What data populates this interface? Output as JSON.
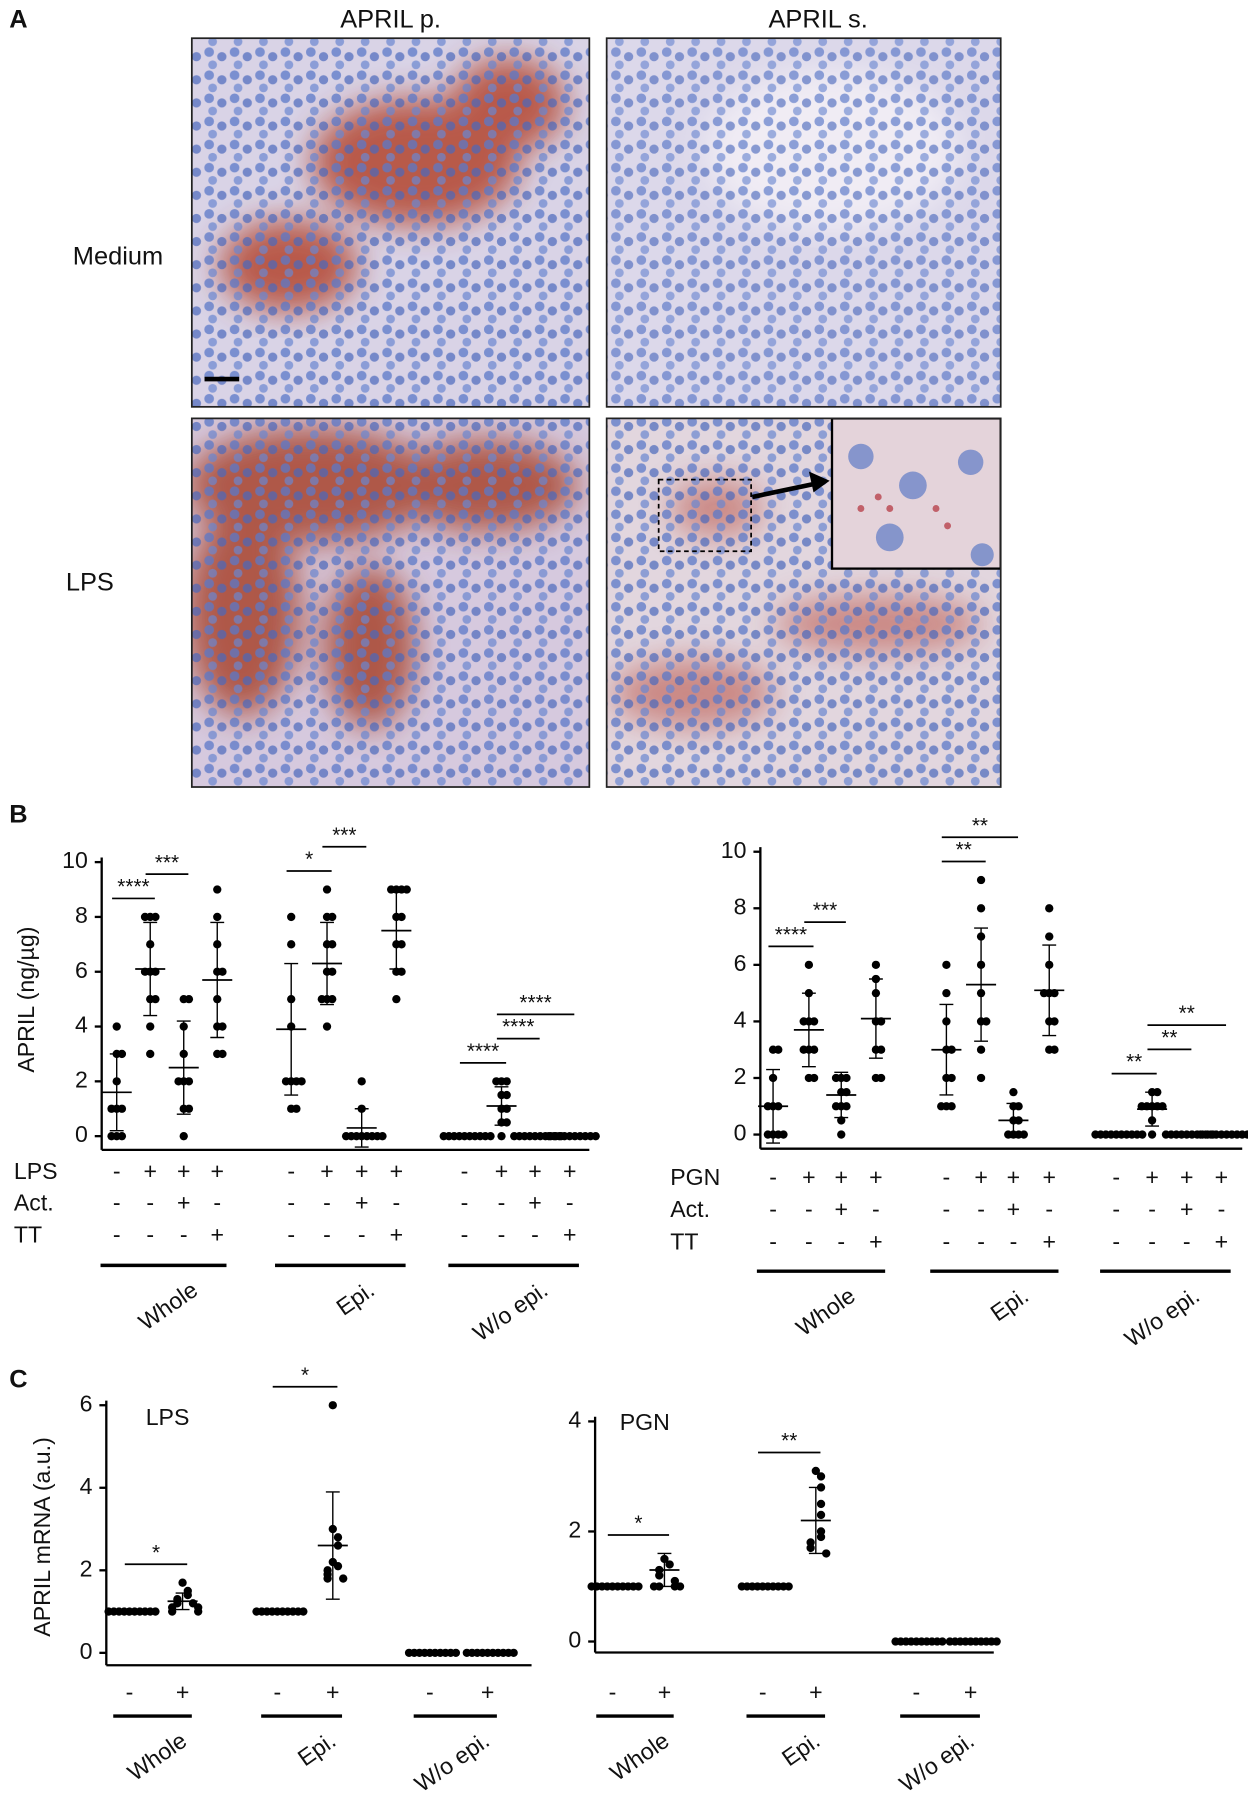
{
  "figure": {
    "panel_labels": [
      "A",
      "B",
      "C"
    ],
    "micrographs": {
      "columns": [
        "APRIL p.",
        "APRIL s."
      ],
      "rows": [
        "Medium",
        "LPS"
      ]
    }
  },
  "chart_data": [
    {
      "type": "dotplot",
      "ylabel": "APRIL (ng/µg)",
      "ylim": [
        -0.5,
        10
      ],
      "yticks": [
        0,
        2,
        4,
        6,
        8,
        10
      ],
      "condition_rows": [
        {
          "label": "LPS",
          "marks": [
            "-",
            "+",
            "+",
            "+",
            "-",
            "+",
            "+",
            "+",
            "-",
            "+",
            "+",
            "+"
          ]
        },
        {
          "label": "Act.",
          "marks": [
            "-",
            "-",
            "+",
            "-",
            "-",
            "-",
            "+",
            "-",
            "-",
            "-",
            "+",
            "-"
          ]
        },
        {
          "label": "TT",
          "marks": [
            "-",
            "-",
            "-",
            "+",
            "-",
            "-",
            "-",
            "+",
            "-",
            "-",
            "-",
            "+"
          ]
        }
      ],
      "groups": [
        "Whole",
        "Epi.",
        "W/o epi."
      ],
      "columns": [
        {
          "values": [
            4,
            3,
            3,
            2,
            1,
            1,
            1,
            0,
            0,
            0
          ],
          "mean": 1.6,
          "sd": 1.4
        },
        {
          "values": [
            8,
            8,
            8,
            7,
            6,
            6,
            6,
            5,
            5,
            4,
            3
          ],
          "mean": 6.1,
          "sd": 1.7
        },
        {
          "values": [
            5,
            5,
            4,
            3,
            2,
            2,
            2,
            1,
            1,
            0
          ],
          "mean": 2.5,
          "sd": 1.7
        },
        {
          "values": [
            9,
            8,
            7,
            6,
            6,
            5,
            4,
            4,
            3,
            3
          ],
          "mean": 5.7,
          "sd": 2.1
        },
        {
          "values": [
            8,
            7,
            5,
            4,
            2,
            2,
            2,
            2,
            1,
            1
          ],
          "mean": 3.9,
          "sd": 2.4
        },
        {
          "values": [
            9,
            8,
            8,
            7,
            7,
            6,
            6,
            5,
            5,
            5,
            4
          ],
          "mean": 6.3,
          "sd": 1.5
        },
        {
          "values": [
            2,
            1,
            0,
            0,
            0,
            0,
            0,
            0,
            0,
            0
          ],
          "mean": 0.3,
          "sd": 0.7
        },
        {
          "values": [
            9,
            9,
            9,
            9,
            8,
            8,
            7,
            7,
            6,
            6,
            5
          ],
          "mean": 7.5,
          "sd": 1.4
        },
        {
          "values": [
            0,
            0,
            0,
            0,
            0,
            0,
            0,
            0,
            0,
            0
          ],
          "mean": 0,
          "sd": 0
        },
        {
          "values": [
            2,
            2,
            2,
            1.5,
            1.5,
            1,
            1,
            0.5,
            0.5,
            0
          ],
          "mean": 1.1,
          "sd": 0.7
        },
        {
          "values": [
            0,
            0,
            0,
            0,
            0,
            0,
            0,
            0,
            0,
            0
          ],
          "mean": 0,
          "sd": 0
        },
        {
          "values": [
            0,
            0,
            0,
            0,
            0,
            0,
            0,
            0,
            0,
            0
          ],
          "mean": 0,
          "sd": 0
        }
      ],
      "comparisons": [
        {
          "label": "****",
          "between": [
            0,
            1
          ]
        },
        {
          "label": "***",
          "between": [
            1,
            2
          ]
        },
        {
          "label": "*",
          "between": [
            4,
            5
          ]
        },
        {
          "label": "***",
          "between": [
            5,
            6
          ]
        },
        {
          "label": "****",
          "between": [
            8,
            9
          ]
        },
        {
          "label": "****",
          "between": [
            9,
            10
          ]
        },
        {
          "label": "****",
          "between": [
            9,
            11
          ]
        }
      ]
    },
    {
      "type": "dotplot",
      "ylim": [
        -0.5,
        10
      ],
      "yticks": [
        0,
        2,
        4,
        6,
        8,
        10
      ],
      "condition_rows": [
        {
          "label": "PGN",
          "marks": [
            "-",
            "+",
            "+",
            "+",
            "-",
            "+",
            "+",
            "+",
            "-",
            "+",
            "+",
            "+"
          ]
        },
        {
          "label": "Act.",
          "marks": [
            "-",
            "-",
            "+",
            "-",
            "-",
            "-",
            "+",
            "-",
            "-",
            "-",
            "+",
            "-"
          ]
        },
        {
          "label": "TT",
          "marks": [
            "-",
            "-",
            "-",
            "+",
            "-",
            "-",
            "-",
            "+",
            "-",
            "-",
            "-",
            "+"
          ]
        }
      ],
      "groups": [
        "Whole",
        "Epi.",
        "W/o epi."
      ],
      "columns": [
        {
          "values": [
            3,
            3,
            2,
            1,
            1,
            1,
            0,
            0,
            0,
            0
          ],
          "mean": 1.0,
          "sd": 1.3
        },
        {
          "values": [
            6,
            5,
            4,
            4,
            4,
            3,
            3,
            3,
            2,
            2
          ],
          "mean": 3.7,
          "sd": 1.3
        },
        {
          "values": [
            2,
            2,
            2,
            1.5,
            1.5,
            1,
            1,
            1,
            0.5,
            0
          ],
          "mean": 1.4,
          "sd": 0.8
        },
        {
          "values": [
            6,
            5.5,
            5,
            4,
            4,
            3,
            3,
            2,
            2
          ],
          "mean": 4.1,
          "sd": 1.4
        },
        {
          "values": [
            6,
            5,
            4,
            3,
            3,
            2,
            2,
            1,
            1,
            1
          ],
          "mean": 3.0,
          "sd": 1.6
        },
        {
          "values": [
            9,
            8,
            7,
            6,
            5,
            4,
            4,
            3,
            2
          ],
          "mean": 5.3,
          "sd": 2.0
        },
        {
          "values": [
            1.5,
            1,
            1,
            0.5,
            0.5,
            0,
            0,
            0,
            0
          ],
          "mean": 0.5,
          "sd": 0.6
        },
        {
          "values": [
            8,
            7,
            6,
            5,
            5,
            5,
            4,
            4,
            3,
            3
          ],
          "mean": 5.1,
          "sd": 1.6
        },
        {
          "values": [
            0,
            0,
            0,
            0,
            0,
            0,
            0,
            0,
            0,
            0
          ],
          "mean": 0,
          "sd": 0
        },
        {
          "values": [
            1.5,
            1.5,
            1,
            1,
            1,
            1,
            1,
            0.5,
            0
          ],
          "mean": 0.9,
          "sd": 0.6
        },
        {
          "values": [
            0,
            0,
            0,
            0,
            0,
            0,
            0,
            0,
            0,
            0
          ],
          "mean": 0,
          "sd": 0
        },
        {
          "values": [
            0,
            0,
            0,
            0,
            0,
            0,
            0,
            0,
            0,
            0
          ],
          "mean": 0,
          "sd": 0
        }
      ],
      "comparisons": [
        {
          "label": "****",
          "between": [
            0,
            1
          ]
        },
        {
          "label": "***",
          "between": [
            1,
            2
          ]
        },
        {
          "label": "**",
          "between": [
            4,
            5
          ]
        },
        {
          "label": "**",
          "between": [
            4,
            6
          ]
        },
        {
          "label": "**",
          "between": [
            8,
            9
          ]
        },
        {
          "label": "**",
          "between": [
            9,
            10
          ]
        },
        {
          "label": "**",
          "between": [
            9,
            11
          ]
        }
      ]
    },
    {
      "type": "dotplot",
      "title": "LPS",
      "ylabel": "APRIL mRNA (a.u.)",
      "ylim": [
        -0.3,
        6
      ],
      "yticks": [
        0,
        2,
        4,
        6
      ],
      "condition_rows": [
        {
          "marks": [
            "-",
            "+",
            "-",
            "+",
            "-",
            "+"
          ]
        }
      ],
      "groups": [
        "Whole",
        "Epi.",
        "W/o epi."
      ],
      "columns": [
        {
          "values": [
            1,
            1,
            1,
            1,
            1,
            1,
            1,
            1,
            1,
            1
          ],
          "mean": 1,
          "sd": 0
        },
        {
          "values": [
            1.7,
            1.5,
            1.4,
            1.3,
            1.2,
            1.2,
            1.1,
            1.1,
            1.0,
            1.0
          ],
          "mean": 1.25,
          "sd": 0.2
        },
        {
          "values": [
            1,
            1,
            1,
            1,
            1,
            1,
            1,
            1,
            1,
            1
          ],
          "mean": 1,
          "sd": 0
        },
        {
          "values": [
            6,
            3,
            2.8,
            2.6,
            2.2,
            2.1,
            2.0,
            1.9,
            1.8,
            1.8
          ],
          "mean": 2.6,
          "sd": 1.3
        },
        {
          "values": [
            0,
            0,
            0,
            0,
            0,
            0,
            0,
            0,
            0,
            0
          ],
          "mean": 0,
          "sd": 0
        },
        {
          "values": [
            0,
            0,
            0,
            0,
            0,
            0,
            0,
            0,
            0,
            0
          ],
          "mean": 0,
          "sd": 0
        }
      ],
      "comparisons": [
        {
          "label": "*",
          "between": [
            0,
            1
          ]
        },
        {
          "label": "*",
          "between": [
            2,
            3
          ]
        }
      ]
    },
    {
      "type": "dotplot",
      "title": "PGN",
      "ylim": [
        -0.2,
        4
      ],
      "yticks": [
        0,
        2,
        4
      ],
      "condition_rows": [
        {
          "marks": [
            "-",
            "+",
            "-",
            "+",
            "-",
            "+"
          ]
        }
      ],
      "groups": [
        "Whole",
        "Epi.",
        "W/o epi."
      ],
      "columns": [
        {
          "values": [
            1,
            1,
            1,
            1,
            1,
            1,
            1,
            1,
            1,
            1
          ],
          "mean": 1,
          "sd": 0
        },
        {
          "values": [
            1.5,
            1.4,
            1.3,
            1.2,
            1.1,
            1.0,
            1.0,
            1.0,
            1.0
          ],
          "mean": 1.3,
          "sd": 0.3
        },
        {
          "values": [
            1,
            1,
            1,
            1,
            1,
            1,
            1,
            1,
            1,
            1
          ],
          "mean": 1,
          "sd": 0
        },
        {
          "values": [
            3.1,
            3.0,
            2.8,
            2.5,
            2.3,
            2.0,
            1.9,
            1.8,
            1.7,
            1.6
          ],
          "mean": 2.2,
          "sd": 0.6
        },
        {
          "values": [
            0,
            0,
            0,
            0,
            0,
            0,
            0,
            0,
            0,
            0
          ],
          "mean": 0,
          "sd": 0
        },
        {
          "values": [
            0,
            0,
            0,
            0,
            0,
            0,
            0,
            0,
            0,
            0
          ],
          "mean": 0,
          "sd": 0
        }
      ],
      "comparisons": [
        {
          "label": "*",
          "between": [
            0,
            1
          ]
        },
        {
          "label": "**",
          "between": [
            2,
            3
          ]
        }
      ]
    }
  ]
}
